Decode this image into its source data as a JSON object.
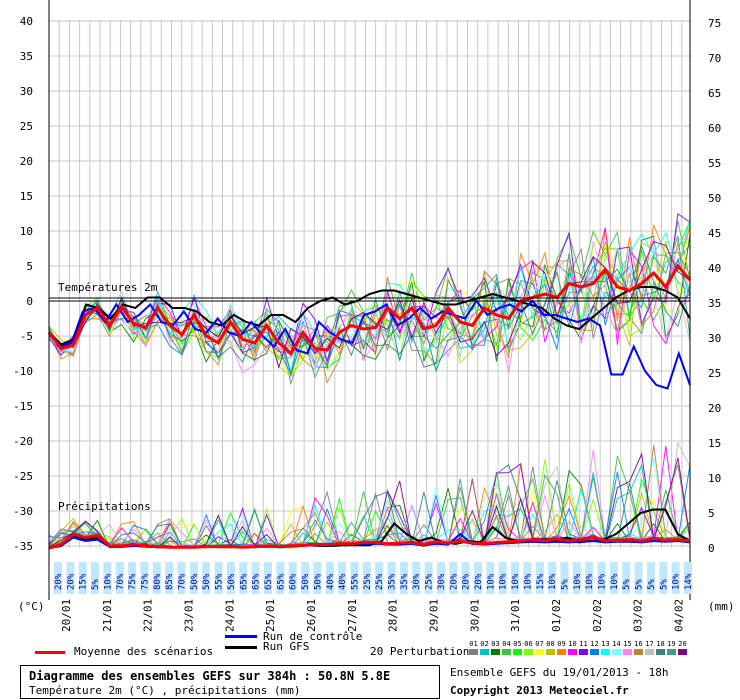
{
  "chart_data": {
    "type": "line",
    "titles": {
      "temperature_label": "Températures 2m",
      "precip_label": "Précipitations"
    },
    "y_left": {
      "ticks": [
        40,
        35,
        30,
        25,
        20,
        15,
        10,
        5,
        0,
        -5,
        -10,
        -15,
        -20,
        -25,
        -30,
        -35
      ],
      "unit": "(°C)"
    },
    "y_right": {
      "ticks": [
        75,
        70,
        65,
        60,
        55,
        50,
        45,
        40,
        35,
        30,
        25,
        20,
        15,
        10,
        5,
        0
      ],
      "unit": "(mm)"
    },
    "x_ticks": [
      "20/01",
      "21/01",
      "22/01",
      "23/01",
      "24/01",
      "25/01",
      "26/01",
      "27/01",
      "28/01",
      "29/01",
      "30/01",
      "31/01",
      "01/02",
      "02/02",
      "03/02",
      "04/02"
    ],
    "snow_probability": [
      "20%",
      "20%",
      "15%",
      "5%",
      "10%",
      "70%",
      "75%",
      "75%",
      "80%",
      "85%",
      "70%",
      "50%",
      "50%",
      "55%",
      "50%",
      "65%",
      "65%",
      "65%",
      "65%",
      "60%",
      "50%",
      "50%",
      "40%",
      "40%",
      "55%",
      "25%",
      "25%",
      "35%",
      "35%",
      "30%",
      "25%",
      "30%",
      "20%",
      "20%",
      "20%",
      "10%",
      "10%",
      "10%",
      "10%",
      "15%",
      "10%",
      "5%",
      "10%",
      "10%",
      "10%",
      "10%",
      "5%",
      "5%",
      "5%",
      "5%",
      "10%",
      "14%"
    ],
    "series": [
      {
        "name": "Moyenne des scénarios",
        "color": "#ff0000",
        "temp": [
          -4.5,
          -6.8,
          -6.3,
          -2.0,
          -1.0,
          -3.5,
          -0.8,
          -3.2,
          -3.8,
          -1.0,
          -3.5,
          -4.8,
          -2.0,
          -5.0,
          -6.0,
          -3.0,
          -5.5,
          -6.0,
          -3.5,
          -6.0,
          -7.5,
          -4.5,
          -6.8,
          -7.0,
          -4.5,
          -3.5,
          -4.0,
          -3.8,
          -1.0,
          -2.5,
          -1.0,
          -4.0,
          -3.5,
          -1.0,
          -3.0,
          -3.5,
          -1.0,
          -2.0,
          -2.5,
          0.0,
          0.5,
          1.0,
          0.5,
          2.5,
          2.0,
          2.5,
          4.5,
          2.0,
          1.5,
          2.5,
          4.0,
          2.0,
          5.0,
          3.0
        ],
        "precip": [
          0,
          0.5,
          2.0,
          1.5,
          1.8,
          0.3,
          0.3,
          0.5,
          0.3,
          0.2,
          0.1,
          0.1,
          0.1,
          0.2,
          0.2,
          0.2,
          0.1,
          0.2,
          0.3,
          0.2,
          0.3,
          0.4,
          0.5,
          0.5,
          0.6,
          0.6,
          0.8,
          0.8,
          0.6,
          0.7,
          0.8,
          0.5,
          0.9,
          0.7,
          1.0,
          0.7,
          0.6,
          0.8,
          0.9,
          1.0,
          1.2,
          1.0,
          1.3,
          1.0,
          1.2,
          1.5,
          1.0,
          1.1,
          1.2,
          1.0,
          1.4,
          1.1,
          1.2,
          1.0
        ]
      },
      {
        "name": "Run de contrôle",
        "color": "#0000ff",
        "temp": [
          -4.5,
          -6.5,
          -6.0,
          -1.5,
          -1.0,
          -3.0,
          -0.5,
          -3.0,
          -2.0,
          -0.5,
          -3.0,
          -3.5,
          -1.5,
          -4.0,
          -4.5,
          -2.5,
          -4.5,
          -5.0,
          -3.0,
          -5.0,
          -6.5,
          -4.0,
          -7.0,
          -7.5,
          -3.0,
          -4.5,
          -5.5,
          -6.0,
          -2.0,
          -1.5,
          -0.5,
          -3.5,
          -2.5,
          -1.0,
          -2.5,
          -1.5,
          -2.0,
          -2.5,
          0.0,
          -2.0,
          -1.0,
          -0.5,
          -1.5,
          0.0,
          -2.0,
          -2.0,
          -2.5,
          -3.0,
          -2.5,
          -3.5,
          -10.5,
          -10.5,
          -6.5,
          -10.0,
          -12.0,
          -12.5,
          -7.5,
          -12.0
        ],
        "precip": [
          0,
          0.3,
          1.5,
          1.0,
          1.2,
          0.2,
          0.2,
          0.3,
          0.2,
          0.1,
          0.1,
          0.1,
          0.1,
          0.2,
          0.2,
          0.2,
          0.1,
          0.2,
          0.2,
          0.2,
          0.2,
          0.3,
          0.4,
          0.4,
          0.5,
          0.5,
          0.6,
          0.6,
          0.5,
          0.5,
          0.6,
          0.4,
          0.6,
          0.5,
          2.0,
          0.6,
          0.5,
          0.6,
          0.7,
          0.8,
          0.9,
          0.8,
          0.9,
          0.8,
          0.9,
          1.0,
          0.8,
          0.9,
          0.9,
          0.8,
          1.0,
          0.9,
          1.0,
          0.8
        ]
      },
      {
        "name": "Run GFS",
        "color": "#000000",
        "temp": [
          -4.5,
          -6.2,
          -5.5,
          -0.5,
          -1.0,
          -2.5,
          -0.5,
          -1.0,
          0.5,
          0.5,
          -1.0,
          -1.0,
          -1.5,
          -3.0,
          -3.5,
          -2.0,
          -3.0,
          -3.5,
          -2.0,
          -2.0,
          -3.0,
          -1.0,
          0.0,
          0.5,
          -0.5,
          0.0,
          1.0,
          1.5,
          1.5,
          1.0,
          0.5,
          0.0,
          -0.5,
          -0.5,
          0.0,
          0.5,
          1.0,
          0.5,
          0.0,
          -0.5,
          -1.0,
          -2.5,
          -3.5,
          -4.0,
          -2.5,
          -1.0,
          0.5,
          1.5,
          2.0,
          2.0,
          1.5,
          0.5,
          -2.5
        ],
        "precip": [
          0,
          0.3,
          1.8,
          1.2,
          1.5,
          0.2,
          0.2,
          0.3,
          0.2,
          0.1,
          0.1,
          0.1,
          0.1,
          0.2,
          0.2,
          0.2,
          0.1,
          0.2,
          0.2,
          0.2,
          0.3,
          0.4,
          0.3,
          0.3,
          0.4,
          0.4,
          0.4,
          1.0,
          3.5,
          2.0,
          1.0,
          1.5,
          0.8,
          0.6,
          1.0,
          0.8,
          3.0,
          1.5,
          1.0,
          1.0,
          1.2,
          1.0,
          1.5,
          0.8,
          1.0,
          1.2,
          2.0,
          3.5,
          5.0,
          5.5,
          5.5,
          2.0,
          1.0
        ]
      }
    ],
    "perturbation_colors": [
      "#808080",
      "#00c0c0",
      "#008000",
      "#40c040",
      "#00ff00",
      "#80ff00",
      "#ffff00",
      "#c0c000",
      "#ff8000",
      "#ff00ff",
      "#8000ff",
      "#0080ff",
      "#00ffff",
      "#80ffff",
      "#ff80ff",
      "#c08040",
      "#c0c0c0",
      "#408080",
      "#40a080",
      "#800080"
    ],
    "perturbation_labels": [
      "01",
      "02",
      "03",
      "04",
      "05",
      "06",
      "07",
      "08",
      "09",
      "10",
      "11",
      "12",
      "13",
      "14",
      "15",
      "16",
      "17",
      "18",
      "19",
      "20"
    ]
  },
  "legend": {
    "mean": "Moyenne des scénarios",
    "control": "Run de contrôle",
    "gfs": "Run GFS",
    "perturbations": "20 Perturbations"
  },
  "footer": {
    "title": "Diagramme des ensembles GEFS sur 384h : 50.8N 5.8E",
    "subtitle": "Température 2m (°C) , précipitations (mm)",
    "run": "Ensemble GEFS du 19/01/2013 - 18h",
    "copyright": "Copyright 2013 Meteociel.fr"
  }
}
